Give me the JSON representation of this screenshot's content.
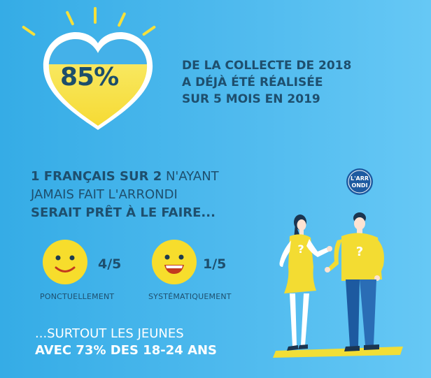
{
  "heart": {
    "percent": "85%"
  },
  "headline": {
    "line1": "DE LA COLLECTE DE 2018",
    "line2": "A DÉJÀ ÉTÉ RÉALISÉE",
    "line3": "SUR 5 MOIS EN 2019"
  },
  "stat": {
    "line1_bold": "1 FRANÇAIS SUR 2",
    "line1_rest": " N'AYANT",
    "line2": "JAMAIS FAIT L'ARRONDI",
    "line3_bold": "SERAIT PRÊT À LE FAIRE..."
  },
  "answers": [
    {
      "fraction": "4/5",
      "caption": "PONCTUELLEMENT",
      "icon": "smile-icon"
    },
    {
      "fraction": "1/5",
      "caption": "SYSTÉMATIQUEMENT",
      "icon": "grin-icon"
    }
  ],
  "youth": {
    "line1": "...SURTOUT LES JEUNES",
    "line2": "AVEC 73% DES 18-24 ANS"
  },
  "logo": {
    "line1": "L'ARR",
    "line2": "ONDI"
  },
  "colors": {
    "background": "#4fbaee",
    "text_dark": "#1e4f6e",
    "yellow": "#f6e03a",
    "accent_blue": "#1d5aa0"
  }
}
